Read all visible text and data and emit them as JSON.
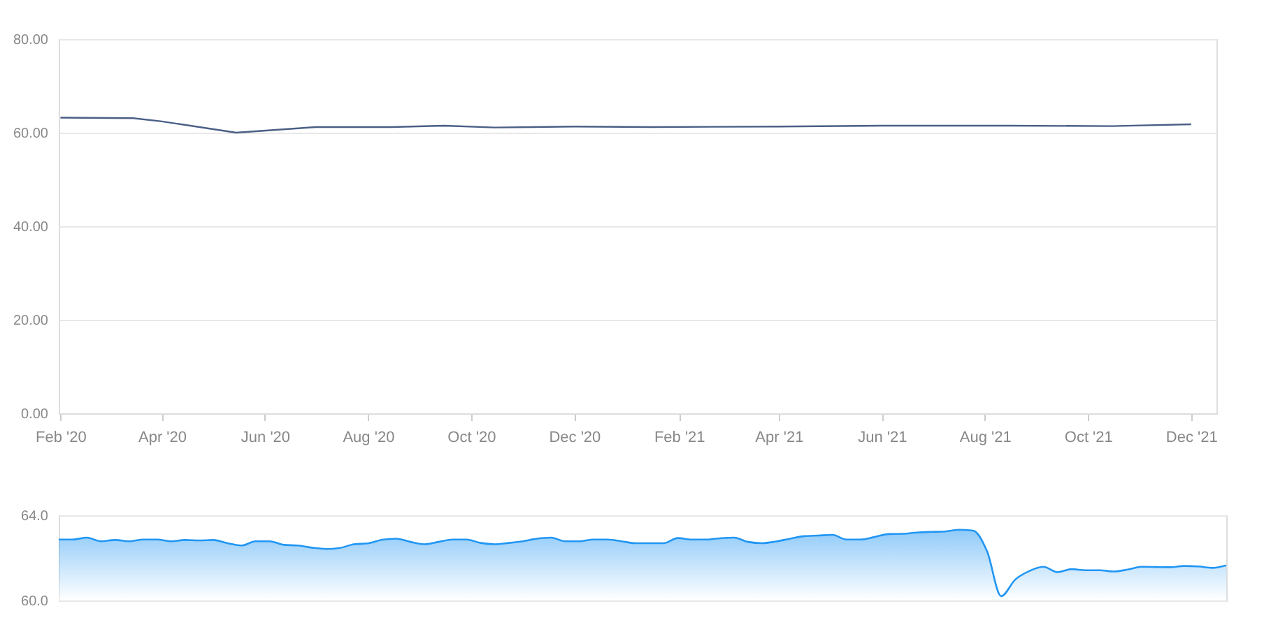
{
  "chart_data": [
    {
      "type": "line",
      "x": [
        "2020-02-01",
        "2020-03-15",
        "2020-04-01",
        "2020-05-15",
        "2020-07-01",
        "2020-08-15",
        "2020-09-15",
        "2020-10-15",
        "2020-12-01",
        "2021-01-15",
        "2021-04-01",
        "2021-06-01",
        "2021-08-15",
        "2021-10-15",
        "2021-12-01"
      ],
      "series": [
        {
          "color": "#4a5f86",
          "values": [
            63.2,
            63.1,
            62.4,
            60.0,
            61.2,
            61.2,
            61.5,
            61.1,
            61.3,
            61.2,
            61.3,
            61.5,
            61.5,
            61.4,
            61.8
          ]
        }
      ],
      "xlim": [
        "2020-01-31",
        "2021-12-16"
      ],
      "xticks": [
        {
          "value": "2020-02-01",
          "label": "Feb '20"
        },
        {
          "value": "2020-04-01",
          "label": "Apr '20"
        },
        {
          "value": "2020-06-01",
          "label": "Jun '20"
        },
        {
          "value": "2020-08-01",
          "label": "Aug '20"
        },
        {
          "value": "2020-10-01",
          "label": "Oct '20"
        },
        {
          "value": "2020-12-01",
          "label": "Dec '20"
        },
        {
          "value": "2021-02-01",
          "label": "Feb '21"
        },
        {
          "value": "2021-04-01",
          "label": "Apr '21"
        },
        {
          "value": "2021-06-01",
          "label": "Jun '21"
        },
        {
          "value": "2021-08-01",
          "label": "Aug '21"
        },
        {
          "value": "2021-10-01",
          "label": "Oct '21"
        },
        {
          "value": "2021-12-01",
          "label": "Dec '21"
        }
      ],
      "ylim": [
        0,
        80
      ],
      "yticks": [
        {
          "value": 0,
          "label": "0.00"
        },
        {
          "value": 20,
          "label": "20.00"
        },
        {
          "value": 40,
          "label": "40.00"
        },
        {
          "value": 60,
          "label": "60.00"
        },
        {
          "value": 80,
          "label": "80.00"
        }
      ],
      "grid": "y"
    },
    {
      "type": "area",
      "categories": [
        null,
        null,
        null,
        null,
        null,
        null,
        null,
        null,
        null,
        null,
        null,
        null,
        null,
        null,
        null,
        null,
        null,
        null,
        null,
        null,
        null,
        null,
        null,
        null,
        null,
        null,
        null,
        null,
        null,
        null,
        null,
        null,
        null,
        null,
        null,
        null,
        null,
        null,
        null,
        null,
        null,
        null,
        null,
        null,
        null,
        null,
        null,
        null,
        null,
        null,
        null,
        null,
        null,
        null,
        null,
        null,
        null,
        null,
        null,
        null,
        null,
        null,
        null,
        null,
        null,
        null,
        null,
        null,
        null,
        null,
        null,
        null,
        null,
        null,
        null,
        null,
        null,
        null,
        null,
        null,
        null,
        null,
        null,
        null
      ],
      "series": [
        {
          "color": "#2196f3",
          "values": [
            62.86,
            62.86,
            62.95,
            62.78,
            62.84,
            62.78,
            62.86,
            62.86,
            62.78,
            62.84,
            62.82,
            62.84,
            62.69,
            62.58,
            62.78,
            62.78,
            62.61,
            62.58,
            62.48,
            62.42,
            62.47,
            62.64,
            62.68,
            62.85,
            62.9,
            62.75,
            62.64,
            62.75,
            62.86,
            62.86,
            62.7,
            62.64,
            62.7,
            62.78,
            62.9,
            62.95,
            62.78,
            62.78,
            62.86,
            62.86,
            62.78,
            62.69,
            62.69,
            62.69,
            62.93,
            62.86,
            62.86,
            62.92,
            62.95,
            62.75,
            62.69,
            62.77,
            62.9,
            63.02,
            63.05,
            63.08,
            62.86,
            62.86,
            62.98,
            63.12,
            63.13,
            63.19,
            63.22,
            63.24,
            63.32,
            63.28,
            62.3,
            60.2,
            60.98,
            61.38,
            61.58,
            61.33,
            61.47,
            61.42,
            61.42,
            61.36,
            61.45,
            61.58,
            61.57,
            61.56,
            61.62,
            61.6,
            61.53,
            61.65
          ]
        }
      ],
      "ylim": [
        60,
        64
      ],
      "yticks": [
        {
          "value": 64,
          "label": "64.0"
        },
        {
          "value": 60,
          "label": "60.0"
        }
      ],
      "grid": "y",
      "tick_labels": "y"
    }
  ]
}
